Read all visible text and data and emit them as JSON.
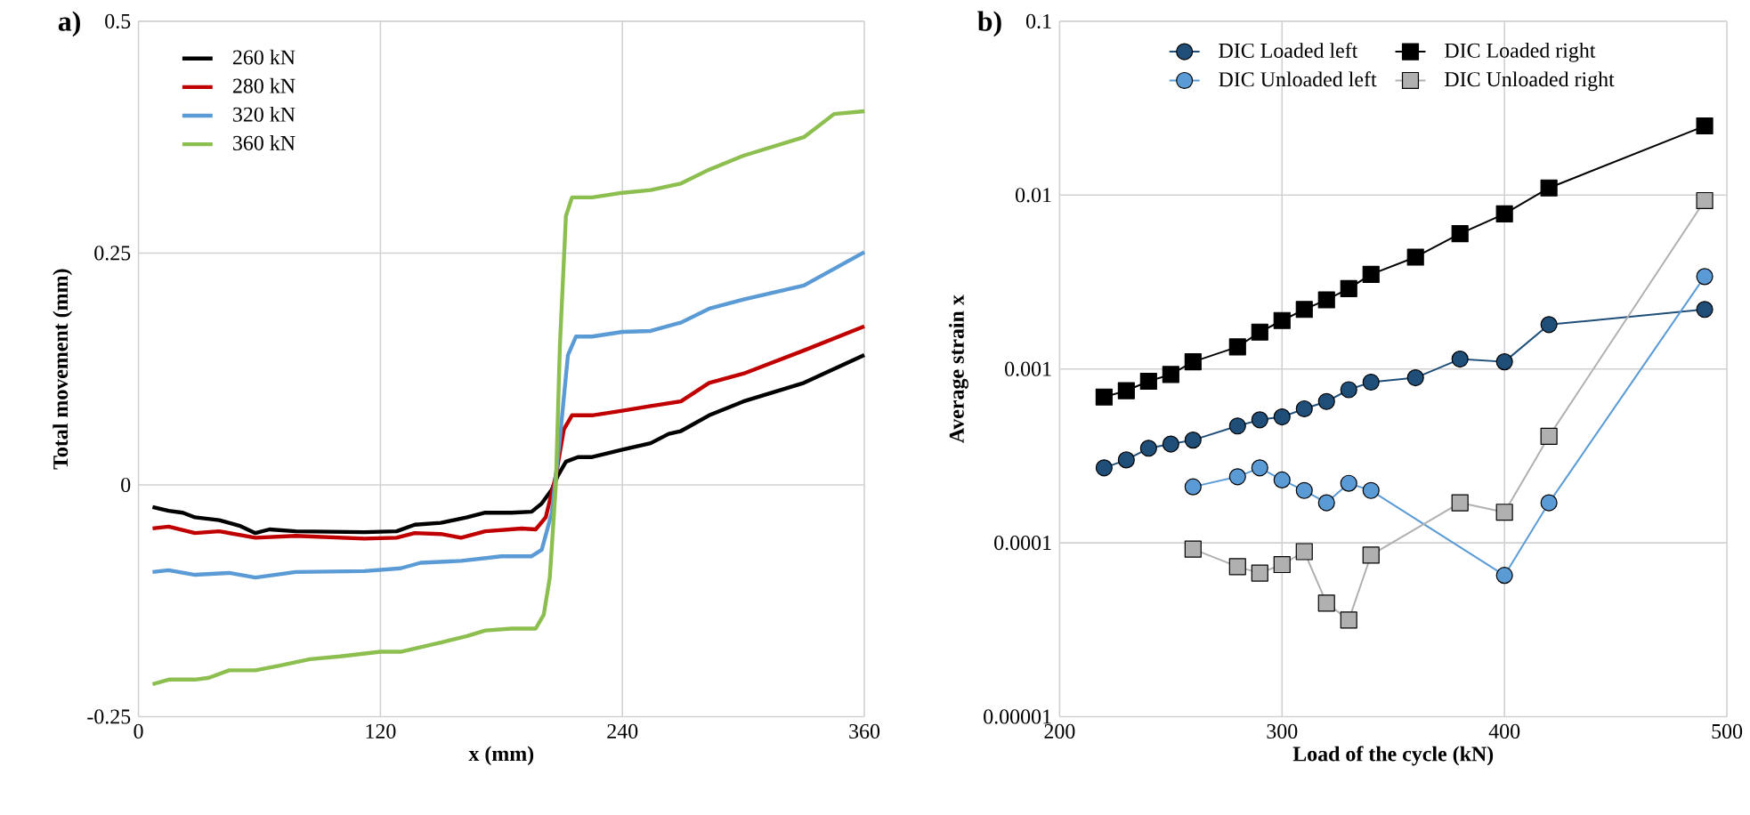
{
  "chart_data": [
    {
      "type": "line",
      "title": "a)",
      "xlabel": "x (mm)",
      "ylabel": "Total movement (mm)",
      "xlim": [
        0,
        360
      ],
      "xticks": [
        0,
        120,
        240,
        360
      ],
      "ylim": [
        -0.25,
        0.5
      ],
      "yticks": [
        -0.25,
        0,
        0.25,
        0.5
      ],
      "grid": true,
      "legend": "top left",
      "series": [
        {
          "name": "260 kN",
          "color": "#000000",
          "x": [
            7,
            15,
            22,
            28,
            40,
            50,
            58,
            65,
            78,
            112,
            128,
            137,
            150,
            163,
            172,
            185,
            195,
            200,
            205,
            208,
            212,
            218,
            225,
            240,
            254,
            263,
            269,
            283,
            300,
            330,
            360
          ],
          "values": [
            -0.024,
            -0.028,
            -0.03,
            -0.035,
            -0.038,
            -0.044,
            -0.052,
            -0.048,
            -0.05,
            -0.051,
            -0.05,
            -0.043,
            -0.041,
            -0.035,
            -0.03,
            -0.03,
            -0.029,
            -0.02,
            -0.005,
            0.01,
            0.025,
            0.03,
            0.03,
            0.038,
            0.045,
            0.055,
            0.058,
            0.075,
            0.09,
            0.11,
            0.14
          ]
        },
        {
          "name": "280 kN",
          "color": "#c00000",
          "x": [
            7,
            15,
            28,
            40,
            58,
            78,
            112,
            128,
            137,
            150,
            160,
            172,
            190,
            197,
            202,
            207,
            211,
            215,
            225,
            240,
            254,
            269,
            283,
            300,
            330,
            360
          ],
          "values": [
            -0.047,
            -0.045,
            -0.052,
            -0.05,
            -0.057,
            -0.055,
            -0.058,
            -0.057,
            -0.052,
            -0.053,
            -0.057,
            -0.05,
            -0.047,
            -0.048,
            -0.035,
            0.01,
            0.06,
            0.075,
            0.075,
            0.08,
            0.085,
            0.09,
            0.11,
            0.12,
            0.145,
            0.171
          ]
        },
        {
          "name": "320 kN",
          "color": "#5b9bd5",
          "x": [
            7,
            15,
            28,
            45,
            58,
            78,
            112,
            130,
            140,
            160,
            180,
            195,
            200,
            205,
            209,
            213,
            217,
            225,
            240,
            254,
            269,
            283,
            300,
            330,
            360
          ],
          "values": [
            -0.094,
            -0.092,
            -0.097,
            -0.095,
            -0.1,
            -0.094,
            -0.093,
            -0.09,
            -0.084,
            -0.082,
            -0.077,
            -0.077,
            -0.07,
            -0.03,
            0.05,
            0.14,
            0.16,
            0.16,
            0.165,
            0.166,
            0.175,
            0.19,
            0.2,
            0.215,
            0.251
          ]
        },
        {
          "name": "360 kN",
          "color": "#8cbf4f",
          "x": [
            7,
            15,
            28,
            35,
            45,
            58,
            70,
            85,
            100,
            120,
            130,
            140,
            150,
            163,
            172,
            185,
            197,
            201,
            204,
            207,
            209,
            212,
            215,
            225,
            240,
            254,
            269,
            283,
            300,
            330,
            345,
            360
          ],
          "values": [
            -0.215,
            -0.21,
            -0.21,
            -0.208,
            -0.2,
            -0.2,
            -0.195,
            -0.188,
            -0.185,
            -0.18,
            -0.18,
            -0.175,
            -0.17,
            -0.163,
            -0.157,
            -0.155,
            -0.155,
            -0.14,
            -0.1,
            0.0,
            0.15,
            0.29,
            0.31,
            0.31,
            0.315,
            0.318,
            0.325,
            0.34,
            0.355,
            0.375,
            0.4,
            0.403
          ]
        }
      ]
    },
    {
      "type": "line",
      "title": "b)",
      "xlabel": "Load of the cycle (kN)",
      "ylabel": "Average strain x",
      "xlim": [
        200,
        500
      ],
      "xticks": [
        200,
        300,
        400,
        500
      ],
      "ylim": [
        1e-05,
        0.1
      ],
      "yticks": [
        {
          "value": 1e-05,
          "label": "0.00001"
        },
        {
          "value": 0.0001,
          "label": "0.0001"
        },
        0.001,
        0.01,
        0.1
      ],
      "log": true,
      "grid": true,
      "legend": "top",
      "series": [
        {
          "name": "DIC Loaded left",
          "color": "#1f4e79",
          "marker": "circle",
          "x": [
            220,
            230,
            240,
            250,
            260,
            280,
            290,
            300,
            310,
            320,
            330,
            340,
            360,
            380,
            400,
            420,
            490
          ],
          "values": [
            0.00027,
            0.0003,
            0.00035,
            0.00037,
            0.00039,
            0.00047,
            0.00051,
            0.00053,
            0.00059,
            0.00065,
            0.00076,
            0.00084,
            0.00089,
            0.00114,
            0.0011,
            0.0018,
            0.0022
          ]
        },
        {
          "name": "DIC Loaded right",
          "color": "#000000",
          "marker": "square",
          "x": [
            220,
            230,
            240,
            250,
            260,
            280,
            290,
            300,
            310,
            320,
            330,
            340,
            360,
            380,
            400,
            420,
            490
          ],
          "values": [
            0.00069,
            0.00075,
            0.00085,
            0.00093,
            0.0011,
            0.00134,
            0.00163,
            0.0019,
            0.0022,
            0.0025,
            0.0029,
            0.0035,
            0.0044,
            0.006,
            0.0078,
            0.011,
            0.025
          ]
        },
        {
          "name": "DIC Unloaded left",
          "color": "#5b9bd5",
          "marker": "circle",
          "x": [
            260,
            280,
            290,
            300,
            310,
            320,
            330,
            340,
            380,
            400,
            420,
            490
          ],
          "values": [
            0.00021,
            0.00024,
            0.00027,
            0.00023,
            0.0002,
            0.00017,
            0.00022,
            0.0002,
            null,
            6.5e-05,
            0.00017,
            0.0034
          ]
        },
        {
          "name": "DIC Unloaded right",
          "color": "#b0b0b0",
          "marker": "square",
          "x": [
            260,
            280,
            290,
            300,
            310,
            320,
            330,
            340,
            380,
            400,
            420,
            490
          ],
          "values": [
            9.2e-05,
            7.3e-05,
            6.7e-05,
            7.5e-05,
            8.9e-05,
            4.5e-05,
            3.6e-05,
            8.5e-05,
            0.00017,
            0.00015,
            0.00041,
            0.0093
          ]
        }
      ]
    }
  ]
}
